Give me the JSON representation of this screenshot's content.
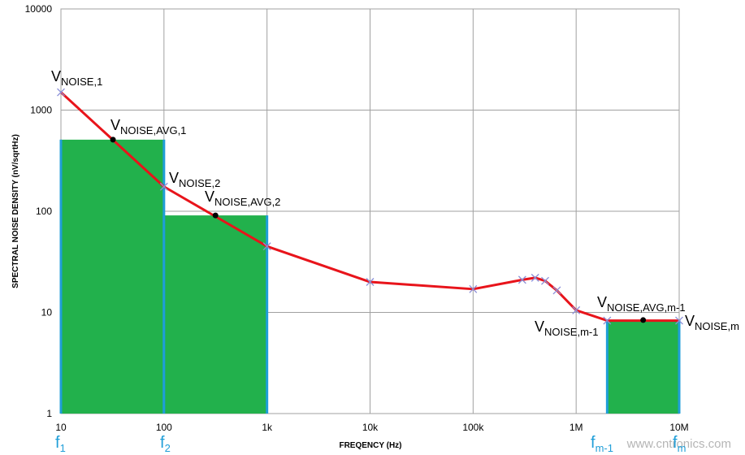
{
  "chart_data": {
    "type": "line",
    "x_label": "FREQENCY (Hz)",
    "y_label": "SPECTRAL NOISE DENSITY  (nV/sqrtHz)",
    "log_x": true,
    "log_y": true,
    "grid": true,
    "xlim": [
      10,
      10000000
    ],
    "ylim": [
      1,
      10000
    ],
    "xticks": [
      10,
      100,
      {
        "value": 1000,
        "label": "1k"
      },
      {
        "value": 10000,
        "label": "10k"
      },
      {
        "value": 100000,
        "label": "100k"
      },
      {
        "value": 1000000,
        "label": "1M"
      },
      {
        "value": 10000000,
        "label": "10M"
      }
    ],
    "yticks": [
      1,
      10,
      100,
      1000,
      10000
    ],
    "series": [
      {
        "color": "#e8141b",
        "marker_color": "#8b8fd8",
        "x": [
          10,
          100,
          1000,
          10000,
          100000,
          300000,
          400000,
          500000,
          650000,
          1000000,
          2000000,
          10000000
        ],
        "values": [
          1500,
          175,
          45,
          20,
          17,
          21,
          22,
          20.5,
          16.5,
          10.5,
          8.3,
          8.3
        ]
      }
    ],
    "averages": {
      "color": "#000000",
      "x": [
        32,
        316,
        4470000
      ],
      "values": [
        510,
        91,
        8.4
      ]
    },
    "bands": {
      "color": "#22b14c",
      "edge_color": "#1f9ed8",
      "x0": [
        10,
        100,
        2000000
      ],
      "x1": [
        100,
        1000,
        10000000
      ],
      "values": [
        510,
        91,
        8.4
      ]
    },
    "annotations": [
      {
        "main": "V",
        "sub": "NOISE,1"
      },
      {
        "main": "V",
        "sub": "NOISE,AVG,1"
      },
      {
        "main": "V",
        "sub": "NOISE,2"
      },
      {
        "main": "V",
        "sub": "NOISE,AVG,2"
      },
      {
        "main": "V",
        "sub": "NOISE,m-1"
      },
      {
        "main": "V",
        "sub": "NOISE,AVG,m-1"
      },
      {
        "main": "V",
        "sub": "NOISE,m"
      }
    ],
    "frequency_labels": [
      {
        "main": "f",
        "sub": "1"
      },
      {
        "main": "f",
        "sub": "2"
      },
      {
        "main": "f",
        "sub": "m-1"
      },
      {
        "main": "f",
        "sub": "m"
      }
    ],
    "watermark": "www.cntronics.com"
  }
}
